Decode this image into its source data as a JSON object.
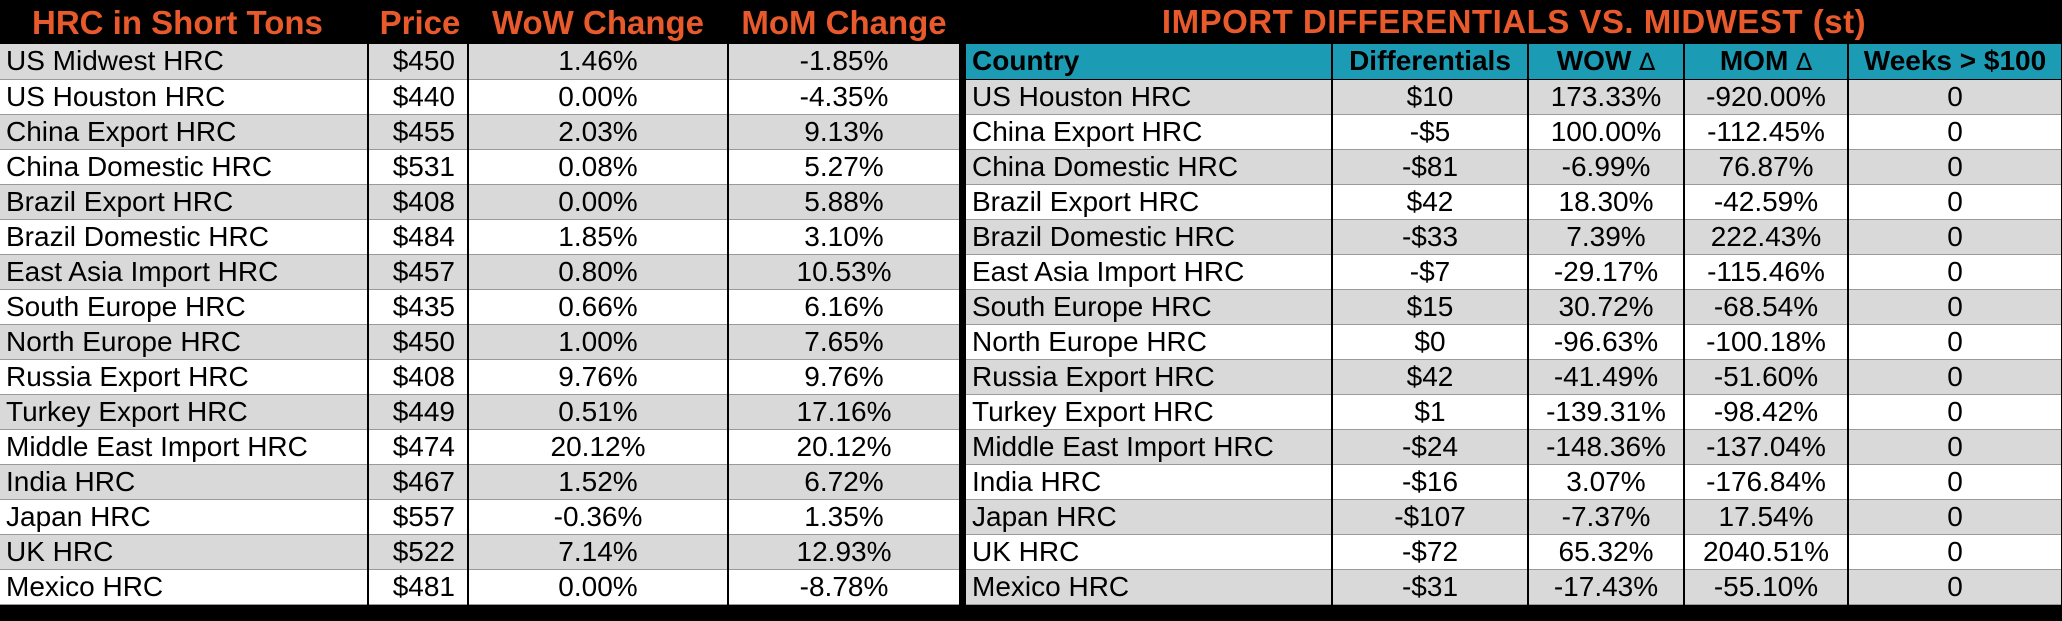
{
  "left": {
    "headers": [
      "HRC in Short Tons",
      "Price",
      "WoW Change",
      "MoM Change"
    ],
    "rows": [
      [
        "US Midwest HRC",
        "$450",
        "1.46%",
        "-1.85%"
      ],
      [
        "US Houston HRC",
        "$440",
        "0.00%",
        "-4.35%"
      ],
      [
        "China Export HRC",
        "$455",
        "2.03%",
        "9.13%"
      ],
      [
        "China Domestic HRC",
        "$531",
        "0.08%",
        "5.27%"
      ],
      [
        "Brazil Export HRC",
        "$408",
        "0.00%",
        "5.88%"
      ],
      [
        "Brazil Domestic HRC",
        "$484",
        "1.85%",
        "3.10%"
      ],
      [
        "East Asia Import HRC",
        "$457",
        "0.80%",
        "10.53%"
      ],
      [
        "South Europe HRC",
        "$435",
        "0.66%",
        "6.16%"
      ],
      [
        "North Europe HRC",
        "$450",
        "1.00%",
        "7.65%"
      ],
      [
        "Russia Export HRC",
        "$408",
        "9.76%",
        "9.76%"
      ],
      [
        "Turkey Export HRC",
        "$449",
        "0.51%",
        "17.16%"
      ],
      [
        "Middle East Import HRC",
        "$474",
        "20.12%",
        "20.12%"
      ],
      [
        "India HRC",
        "$467",
        "1.52%",
        "6.72%"
      ],
      [
        "Japan HRC",
        "$557",
        "-0.36%",
        "1.35%"
      ],
      [
        "UK HRC",
        "$522",
        "7.14%",
        "12.93%"
      ],
      [
        "Mexico HRC",
        "$481",
        "0.00%",
        "-8.78%"
      ]
    ]
  },
  "right": {
    "title": "IMPORT DIFFERENTIALS VS. MIDWEST (st)",
    "columns": [
      "Country",
      "Differentials",
      "WOW",
      "MOM",
      "Weeks > $100"
    ],
    "delta_symbol": "∆",
    "rows": [
      [
        "US Houston HRC",
        "$10",
        "173.33%",
        "-920.00%",
        "0"
      ],
      [
        "China Export HRC",
        "-$5",
        "100.00%",
        "-112.45%",
        "0"
      ],
      [
        "China Domestic HRC",
        "-$81",
        "-6.99%",
        "76.87%",
        "0"
      ],
      [
        "Brazil Export HRC",
        "$42",
        "18.30%",
        "-42.59%",
        "0"
      ],
      [
        "Brazil Domestic HRC",
        "-$33",
        "7.39%",
        "222.43%",
        "0"
      ],
      [
        "East Asia Import HRC",
        "-$7",
        "-29.17%",
        "-115.46%",
        "0"
      ],
      [
        "South Europe HRC",
        "$15",
        "30.72%",
        "-68.54%",
        "0"
      ],
      [
        "North Europe HRC",
        "$0",
        "-96.63%",
        "-100.18%",
        "0"
      ],
      [
        "Russia Export HRC",
        "$42",
        "-41.49%",
        "-51.60%",
        "0"
      ],
      [
        "Turkey Export HRC",
        "$1",
        "-139.31%",
        "-98.42%",
        "0"
      ],
      [
        "Middle East Import HRC",
        "-$24",
        "-148.36%",
        "-137.04%",
        "0"
      ],
      [
        "India HRC",
        "-$16",
        "3.07%",
        "-176.84%",
        "0"
      ],
      [
        "Japan HRC",
        "-$107",
        "-7.37%",
        "17.54%",
        "0"
      ],
      [
        "UK HRC",
        "-$72",
        "65.32%",
        "2040.51%",
        "0"
      ],
      [
        "Mexico HRC",
        "-$31",
        "-17.43%",
        "-55.10%",
        "0"
      ]
    ]
  },
  "colors": {
    "accent_orange": "#e8592b",
    "header_teal": "#1b9bb4",
    "row_gray": "#d9d9d9",
    "row_white": "#ffffff"
  }
}
